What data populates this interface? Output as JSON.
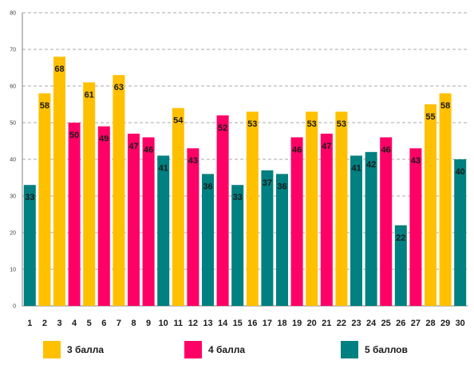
{
  "chart_data": {
    "type": "bar",
    "title": "",
    "xlabel": "",
    "ylabel": "",
    "ylim": [
      0,
      80
    ],
    "yticks": [
      0,
      10,
      20,
      30,
      40,
      50,
      60,
      70,
      80
    ],
    "grid": true,
    "legend_position": "bottom",
    "categories": [
      "1",
      "2",
      "3",
      "4",
      "5",
      "6",
      "7",
      "8",
      "9",
      "10",
      "11",
      "12",
      "13",
      "14",
      "15",
      "16",
      "17",
      "18",
      "19",
      "20",
      "21",
      "22",
      "23",
      "24",
      "25",
      "26",
      "27",
      "28",
      "29",
      "30"
    ],
    "values": [
      33,
      58,
      68,
      50,
      61,
      49,
      63,
      47,
      46,
      41,
      54,
      43,
      36,
      52,
      33,
      53,
      37,
      36,
      46,
      53,
      47,
      53,
      41,
      42,
      46,
      22,
      43,
      55,
      58,
      40
    ],
    "bar_groups": [
      "5",
      "3",
      "3",
      "4",
      "3",
      "4",
      "3",
      "4",
      "4",
      "5",
      "3",
      "4",
      "5",
      "4",
      "5",
      "3",
      "5",
      "5",
      "4",
      "3",
      "4",
      "3",
      "5",
      "5",
      "4",
      "5",
      "4",
      "3",
      "3",
      "5"
    ],
    "series": [
      {
        "key": "3",
        "name": "3 балла",
        "color": "#FFC000"
      },
      {
        "key": "4",
        "name": "4 балла",
        "color": "#FF0066"
      },
      {
        "key": "5",
        "name": "5 баллов",
        "color": "#008080"
      }
    ]
  }
}
